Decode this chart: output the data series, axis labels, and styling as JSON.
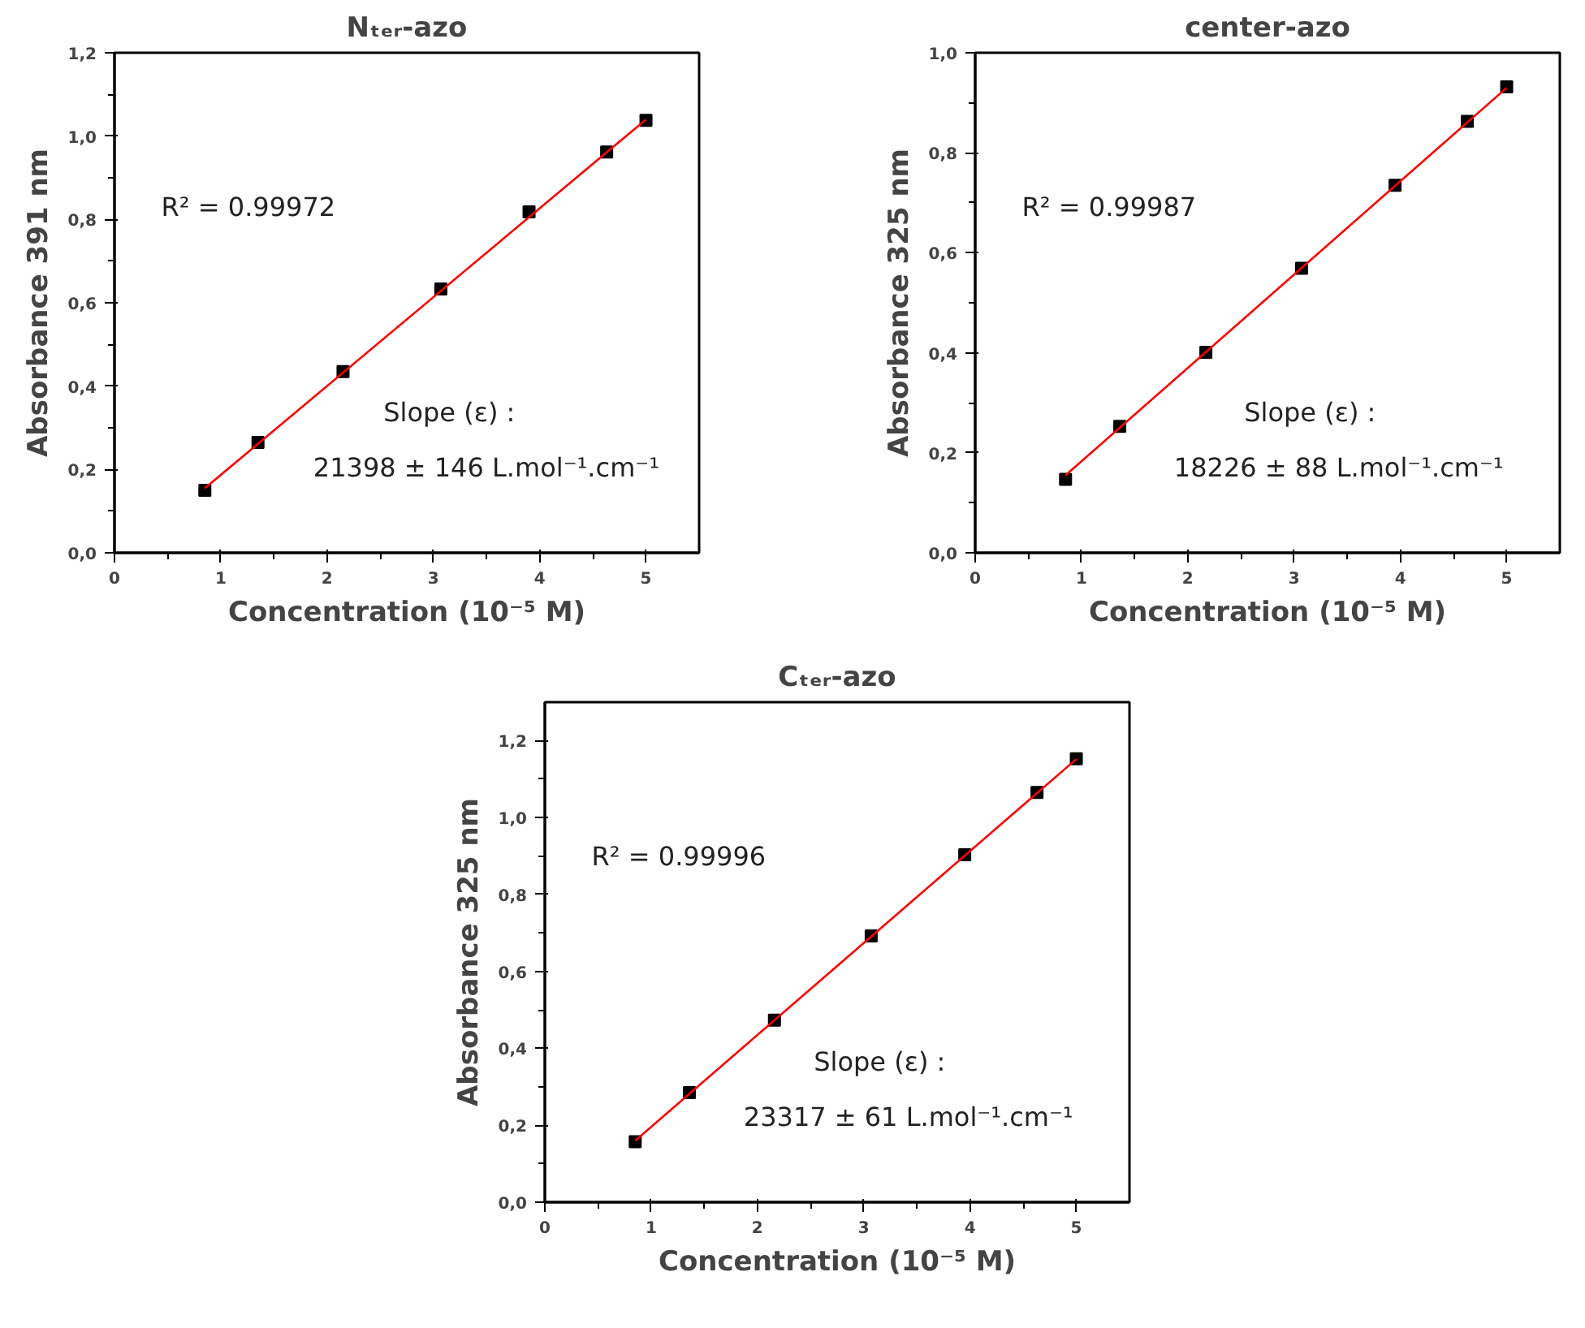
{
  "chart_data": [
    {
      "type": "scatter",
      "title": "Nₜₑᵣ-azo",
      "xlabel": "Concentration (10⁻⁵ M)",
      "ylabel": "Absorbance 391 nm",
      "xlim": [
        0,
        5.5
      ],
      "xticks": [
        0,
        1,
        2,
        3,
        4,
        5
      ],
      "ylim": [
        0,
        1.2
      ],
      "yticks": [
        {
          "value": 0,
          "label": "0,0"
        },
        {
          "value": 0.2,
          "label": "0,2"
        },
        {
          "value": 0.4,
          "label": "0,4"
        },
        {
          "value": 0.6,
          "label": "0,6"
        },
        {
          "value": 0.8,
          "label": "0,8"
        },
        {
          "value": 1.0,
          "label": "1,0"
        },
        {
          "value": 1.2,
          "label": "1,2"
        }
      ],
      "grid": false,
      "series": [
        {
          "marker": "square",
          "color": "#000000",
          "x": [
            0.85,
            1.35,
            2.15,
            3.07,
            3.9,
            4.63,
            5.0
          ],
          "values": [
            0.15,
            0.265,
            0.435,
            0.633,
            0.818,
            0.962,
            1.038
          ]
        },
        {
          "type": "line",
          "color": "#ff0000",
          "x": [
            0.85,
            5.0
          ],
          "values": [
            0.155,
            1.04
          ]
        }
      ],
      "annotations": [
        "R² = 0.99972",
        "Slope (ε) :",
        "21398  ± 146 L.mol⁻¹.cm⁻¹"
      ]
    },
    {
      "type": "scatter",
      "title": "center-azo",
      "xlabel": "Concentration (10⁻⁵ M)",
      "ylabel": "Absorbance 325 nm",
      "xlim": [
        0,
        5.5
      ],
      "xticks": [
        0,
        1,
        2,
        3,
        4,
        5
      ],
      "ylim": [
        0,
        1.0
      ],
      "yticks": [
        {
          "value": 0,
          "label": "0,0"
        },
        {
          "value": 0.2,
          "label": "0,2"
        },
        {
          "value": 0.4,
          "label": "0,4"
        },
        {
          "value": 0.6,
          "label": "0,6"
        },
        {
          "value": 0.8,
          "label": "0,8"
        },
        {
          "value": 1.0,
          "label": "1,0"
        }
      ],
      "grid": false,
      "series": [
        {
          "marker": "square",
          "color": "#000000",
          "x": [
            0.85,
            1.36,
            2.17,
            3.07,
            3.95,
            4.63,
            5.0
          ],
          "values": [
            0.147,
            0.253,
            0.401,
            0.569,
            0.735,
            0.863,
            0.932
          ]
        },
        {
          "type": "line",
          "color": "#ff0000",
          "x": [
            0.85,
            5.0
          ],
          "values": [
            0.155,
            0.93
          ]
        }
      ],
      "annotations": [
        "R² = 0.99987",
        "Slope (ε) :",
        "18226  ± 88 L.mol⁻¹.cm⁻¹"
      ]
    },
    {
      "type": "scatter",
      "title": "Cₜₑᵣ-azo",
      "xlabel": "Concentration (10⁻⁵ M)",
      "ylabel": "Absorbance 325 nm",
      "xlim": [
        0,
        5.5
      ],
      "xticks": [
        0,
        1,
        2,
        3,
        4,
        5
      ],
      "ylim": [
        0,
        1.3
      ],
      "yticks": [
        {
          "value": 0,
          "label": "0,0"
        },
        {
          "value": 0.2,
          "label": "0,2"
        },
        {
          "value": 0.4,
          "label": "0,4"
        },
        {
          "value": 0.6,
          "label": "0,6"
        },
        {
          "value": 0.8,
          "label": "0,8"
        },
        {
          "value": 1.0,
          "label": "1,0"
        },
        {
          "value": 1.2,
          "label": "1,2"
        }
      ],
      "grid": false,
      "series": [
        {
          "marker": "square",
          "color": "#000000",
          "x": [
            0.85,
            1.36,
            2.16,
            3.07,
            3.95,
            4.63,
            5.0
          ],
          "values": [
            0.157,
            0.285,
            0.473,
            0.692,
            0.903,
            1.065,
            1.153
          ]
        },
        {
          "type": "line",
          "color": "#ff0000",
          "x": [
            0.85,
            5.0
          ],
          "values": [
            0.16,
            1.152
          ]
        }
      ],
      "annotations": [
        "R² = 0.99996",
        "Slope (ε) :",
        "23317  ± 61 L.mol⁻¹.cm⁻¹"
      ]
    }
  ]
}
